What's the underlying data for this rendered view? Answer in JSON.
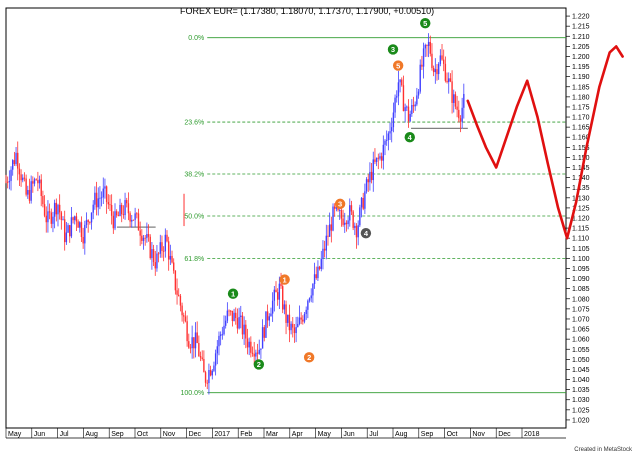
{
  "header": {
    "title": "FOREX EUR= (1.17380, 1.18070, 1.17370, 1.17900, +0.00510)"
  },
  "footer": {
    "credit": "Created in MetaStock"
  },
  "colors": {
    "bull": "#4040ff",
    "bear": "#ff3030",
    "fib": "#2e9b2e",
    "green_badge": "#1a8a1a",
    "orange_badge": "#f07828",
    "gray_badge": "#555555",
    "forecast": "#e01010"
  },
  "chart_data": {
    "type": "candlestick",
    "title": "FOREX EUR= (1.17380, 1.18070, 1.17370, 1.17900, +0.00510)",
    "x_ticks": [
      "May",
      "Jun",
      "Jul",
      "Aug",
      "Sep",
      "Oct",
      "Nov",
      "Dec",
      "2017",
      "Feb",
      "Mar",
      "Apr",
      "May",
      "Jun",
      "Jul",
      "Aug",
      "Sep",
      "Oct",
      "Nov",
      "Dec",
      "2018"
    ],
    "y_ticks": [
      "1.220",
      "1.215",
      "1.210",
      "1.205",
      "1.200",
      "1.195",
      "1.190",
      "1.185",
      "1.180",
      "1.175",
      "1.170",
      "1.165",
      "1.160",
      "1.155",
      "1.150",
      "1.145",
      "1.140",
      "1.135",
      "1.130",
      "1.125",
      "1.120",
      "1.115",
      "1.110",
      "1.105",
      "1.100",
      "1.095",
      "1.090",
      "1.085",
      "1.080",
      "1.075",
      "1.070",
      "1.065",
      "1.060",
      "1.055",
      "1.050",
      "1.045",
      "1.040",
      "1.035",
      "1.030",
      "1.025",
      "1.020"
    ],
    "ylim": [
      1.016,
      1.224
    ],
    "fib_levels": [
      {
        "label": "0.0%",
        "value": 1.2093
      },
      {
        "label": "23.6%",
        "value": 1.1675
      },
      {
        "label": "38.2%",
        "value": 1.1418
      },
      {
        "label": "50.0%",
        "value": 1.121
      },
      {
        "label": "61.8%",
        "value": 1.1
      },
      {
        "label": "100.0%",
        "value": 1.0335
      }
    ],
    "price_path": [
      {
        "m": 0.0,
        "v": 1.138
      },
      {
        "m": 0.4,
        "v": 1.152
      },
      {
        "m": 0.8,
        "v": 1.13
      },
      {
        "m": 1.2,
        "v": 1.14
      },
      {
        "m": 1.6,
        "v": 1.118
      },
      {
        "m": 2.0,
        "v": 1.128
      },
      {
        "m": 2.3,
        "v": 1.11
      },
      {
        "m": 2.7,
        "v": 1.122
      },
      {
        "m": 3.0,
        "v": 1.112
      },
      {
        "m": 3.4,
        "v": 1.128
      },
      {
        "m": 3.8,
        "v": 1.132
      },
      {
        "m": 4.2,
        "v": 1.118
      },
      {
        "m": 4.6,
        "v": 1.125
      },
      {
        "m": 5.0,
        "v": 1.12
      },
      {
        "m": 5.4,
        "v": 1.11
      },
      {
        "m": 5.8,
        "v": 1.098
      },
      {
        "m": 6.2,
        "v": 1.11
      },
      {
        "m": 6.5,
        "v": 1.09
      },
      {
        "m": 6.8,
        "v": 1.075
      },
      {
        "m": 7.1,
        "v": 1.06
      },
      {
        "m": 7.4,
        "v": 1.058
      },
      {
        "m": 7.7,
        "v": 1.04
      },
      {
        "m": 8.0,
        "v": 1.048
      },
      {
        "m": 8.3,
        "v": 1.062
      },
      {
        "m": 8.6,
        "v": 1.072
      },
      {
        "m": 9.0,
        "v": 1.07
      },
      {
        "m": 9.4,
        "v": 1.058
      },
      {
        "m": 9.8,
        "v": 1.055
      },
      {
        "m": 10.2,
        "v": 1.075
      },
      {
        "m": 10.6,
        "v": 1.085
      },
      {
        "m": 10.9,
        "v": 1.068
      },
      {
        "m": 11.2,
        "v": 1.062
      },
      {
        "m": 11.5,
        "v": 1.072
      },
      {
        "m": 11.8,
        "v": 1.085
      },
      {
        "m": 12.1,
        "v": 1.092
      },
      {
        "m": 12.4,
        "v": 1.108
      },
      {
        "m": 12.7,
        "v": 1.122
      },
      {
        "m": 13.0,
        "v": 1.12
      },
      {
        "m": 13.3,
        "v": 1.123
      },
      {
        "m": 13.6,
        "v": 1.115
      },
      {
        "m": 13.9,
        "v": 1.132
      },
      {
        "m": 14.2,
        "v": 1.144
      },
      {
        "m": 14.5,
        "v": 1.15
      },
      {
        "m": 14.8,
        "v": 1.16
      },
      {
        "m": 15.0,
        "v": 1.172
      },
      {
        "m": 15.2,
        "v": 1.188
      },
      {
        "m": 15.4,
        "v": 1.178
      },
      {
        "m": 15.6,
        "v": 1.17
      },
      {
        "m": 15.8,
        "v": 1.175
      },
      {
        "m": 16.0,
        "v": 1.188
      },
      {
        "m": 16.2,
        "v": 1.2
      },
      {
        "m": 16.4,
        "v": 1.206
      },
      {
        "m": 16.6,
        "v": 1.192
      },
      {
        "m": 16.8,
        "v": 1.2
      },
      {
        "m": 17.0,
        "v": 1.194
      },
      {
        "m": 17.2,
        "v": 1.185
      },
      {
        "m": 17.4,
        "v": 1.176
      },
      {
        "m": 17.6,
        "v": 1.172
      },
      {
        "m": 17.8,
        "v": 1.179
      }
    ],
    "wave_labels": [
      {
        "label": "1",
        "color": "green",
        "m": 8.8,
        "v": 1.0825
      },
      {
        "label": "2",
        "color": "green",
        "m": 9.8,
        "v": 1.0475
      },
      {
        "label": "1",
        "color": "orange",
        "m": 10.8,
        "v": 1.0895
      },
      {
        "label": "2",
        "color": "orange",
        "m": 11.75,
        "v": 1.051
      },
      {
        "label": "3",
        "color": "orange",
        "m": 12.95,
        "v": 1.127
      },
      {
        "label": "4",
        "color": "gray",
        "m": 13.95,
        "v": 1.1125
      },
      {
        "label": "3",
        "color": "green",
        "m": 15.0,
        "v": 1.2035
      },
      {
        "label": "5",
        "color": "orange",
        "m": 15.2,
        "v": 1.1955
      },
      {
        "label": "4",
        "color": "green",
        "m": 15.65,
        "v": 1.16
      },
      {
        "label": "5",
        "color": "green",
        "m": 16.25,
        "v": 1.2165
      }
    ],
    "forecast_path": [
      {
        "m": 17.9,
        "v": 1.178
      },
      {
        "m": 18.25,
        "v": 1.166
      },
      {
        "m": 18.6,
        "v": 1.155
      },
      {
        "m": 19.0,
        "v": 1.145
      },
      {
        "m": 19.4,
        "v": 1.16
      },
      {
        "m": 19.8,
        "v": 1.175
      },
      {
        "m": 20.2,
        "v": 1.188
      },
      {
        "m": 20.6,
        "v": 1.17
      },
      {
        "m": 21.0,
        "v": 1.147
      },
      {
        "m": 21.4,
        "v": 1.125
      },
      {
        "m": 21.75,
        "v": 1.11
      },
      {
        "m": 22.1,
        "v": 1.128
      },
      {
        "m": 22.5,
        "v": 1.155
      },
      {
        "m": 23.0,
        "v": 1.185
      },
      {
        "m": 23.4,
        "v": 1.202
      },
      {
        "m": 23.65,
        "v": 1.205
      },
      {
        "m": 23.9,
        "v": 1.2
      }
    ],
    "grid": false
  }
}
